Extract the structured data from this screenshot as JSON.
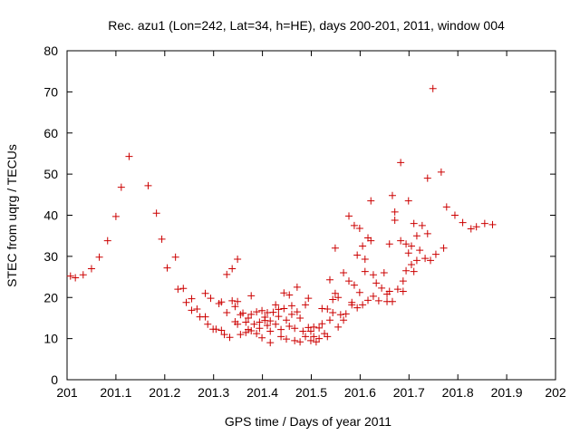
{
  "chart_data": {
    "type": "scatter",
    "title": "Rec. azu1 (Lon=242, Lat=34, h=HE), days 200-201, 2011, window 004",
    "xlabel": "GPS time / Days of year 2011",
    "ylabel": "STEC from uqrg / TECUs",
    "xlim": [
      201,
      202
    ],
    "ylim": [
      0,
      80
    ],
    "xticks": [
      "201",
      "201.1",
      "201.2",
      "201.3",
      "201.4",
      "201.5",
      "201.6",
      "201.7",
      "201.8",
      "201.9",
      "202"
    ],
    "yticks": [
      "0",
      "10",
      "20",
      "30",
      "40",
      "50",
      "60",
      "70",
      "80"
    ],
    "grid": false,
    "marker": "+",
    "color": "#cc0000",
    "points": [
      [
        201.007,
        25.2
      ],
      [
        201.017,
        24.8
      ],
      [
        201.033,
        25.5
      ],
      [
        201.05,
        27.0
      ],
      [
        201.066,
        29.8
      ],
      [
        201.083,
        33.8
      ],
      [
        201.1,
        39.7
      ],
      [
        201.111,
        46.8
      ],
      [
        201.127,
        54.3
      ],
      [
        201.166,
        47.2
      ],
      [
        201.183,
        40.5
      ],
      [
        201.194,
        34.2
      ],
      [
        201.205,
        27.2
      ],
      [
        201.222,
        29.8
      ],
      [
        201.227,
        22.0
      ],
      [
        201.238,
        22.2
      ],
      [
        201.244,
        18.8
      ],
      [
        201.255,
        19.7
      ],
      [
        201.255,
        16.9
      ],
      [
        201.266,
        17.2
      ],
      [
        201.272,
        15.3
      ],
      [
        201.283,
        21.0
      ],
      [
        201.283,
        15.3
      ],
      [
        201.288,
        13.5
      ],
      [
        201.294,
        19.8
      ],
      [
        201.299,
        12.3
      ],
      [
        201.305,
        12.3
      ],
      [
        201.311,
        18.5
      ],
      [
        201.316,
        18.9
      ],
      [
        201.316,
        12.0
      ],
      [
        201.322,
        11.0
      ],
      [
        201.327,
        25.6
      ],
      [
        201.327,
        16.3
      ],
      [
        201.333,
        10.3
      ],
      [
        201.338,
        27.0
      ],
      [
        201.338,
        19.2
      ],
      [
        201.344,
        17.8
      ],
      [
        201.344,
        14.1
      ],
      [
        201.349,
        29.3
      ],
      [
        201.349,
        19.0
      ],
      [
        201.349,
        13.5
      ],
      [
        201.355,
        11.0
      ],
      [
        201.355,
        15.8
      ],
      [
        201.36,
        16.2
      ],
      [
        201.366,
        14.0
      ],
      [
        201.366,
        11.5
      ],
      [
        201.371,
        12.2
      ],
      [
        201.371,
        15.0
      ],
      [
        201.377,
        11.9
      ],
      [
        201.377,
        20.4
      ],
      [
        201.377,
        15.9
      ],
      [
        201.383,
        13.5
      ],
      [
        201.388,
        16.5
      ],
      [
        201.388,
        11.2
      ],
      [
        201.394,
        14.0
      ],
      [
        201.394,
        12.5
      ],
      [
        201.399,
        16.8
      ],
      [
        201.399,
        10.2
      ],
      [
        201.405,
        14.4
      ],
      [
        201.405,
        15.2
      ],
      [
        201.41,
        16.3
      ],
      [
        201.41,
        13.2
      ],
      [
        201.416,
        9.0
      ],
      [
        201.416,
        11.8
      ],
      [
        201.416,
        14.3
      ],
      [
        201.422,
        16.4
      ],
      [
        201.427,
        18.2
      ],
      [
        201.427,
        13.5
      ],
      [
        201.433,
        15.4
      ],
      [
        201.433,
        17.1
      ],
      [
        201.438,
        10.5
      ],
      [
        201.438,
        12.2
      ],
      [
        201.444,
        21.1
      ],
      [
        201.444,
        17.3
      ],
      [
        201.449,
        14.5
      ],
      [
        201.449,
        9.9
      ],
      [
        201.455,
        20.6
      ],
      [
        201.455,
        13.0
      ],
      [
        201.46,
        18.0
      ],
      [
        201.46,
        15.9
      ],
      [
        201.466,
        9.5
      ],
      [
        201.466,
        12.5
      ],
      [
        201.471,
        22.5
      ],
      [
        201.471,
        16.5
      ],
      [
        201.477,
        15.0
      ],
      [
        201.477,
        9.2
      ],
      [
        201.483,
        11.8
      ],
      [
        201.488,
        18.2
      ],
      [
        201.488,
        10.5
      ],
      [
        201.494,
        19.8
      ],
      [
        201.494,
        12.7
      ],
      [
        201.499,
        9.5
      ],
      [
        201.499,
        11.8
      ],
      [
        201.505,
        12.8
      ],
      [
        201.505,
        10.5
      ],
      [
        201.51,
        9.2
      ],
      [
        201.516,
        12.6
      ],
      [
        201.516,
        10.0
      ],
      [
        201.522,
        13.6
      ],
      [
        201.522,
        17.3
      ],
      [
        201.527,
        11.2
      ],
      [
        201.533,
        17.2
      ],
      [
        201.533,
        10.5
      ],
      [
        201.538,
        24.3
      ],
      [
        201.538,
        14.5
      ],
      [
        201.544,
        19.5
      ],
      [
        201.544,
        16.3
      ],
      [
        201.549,
        32.0
      ],
      [
        201.549,
        21.0
      ],
      [
        201.555,
        12.8
      ],
      [
        201.555,
        20.0
      ],
      [
        201.56,
        15.8
      ],
      [
        201.566,
        26.0
      ],
      [
        201.566,
        14.5
      ],
      [
        201.571,
        16.0
      ],
      [
        201.577,
        39.8
      ],
      [
        201.577,
        24.0
      ],
      [
        201.583,
        18.2
      ],
      [
        201.583,
        18.8
      ],
      [
        201.588,
        37.5
      ],
      [
        201.588,
        23.0
      ],
      [
        201.594,
        30.3
      ],
      [
        201.594,
        17.5
      ],
      [
        201.599,
        36.8
      ],
      [
        201.599,
        21.2
      ],
      [
        201.605,
        32.5
      ],
      [
        201.605,
        18.2
      ],
      [
        201.61,
        29.3
      ],
      [
        201.61,
        26.3
      ],
      [
        201.616,
        34.5
      ],
      [
        201.616,
        19.3
      ],
      [
        201.622,
        43.5
      ],
      [
        201.622,
        33.8
      ],
      [
        201.627,
        20.3
      ],
      [
        201.627,
        25.5
      ],
      [
        201.633,
        23.5
      ],
      [
        201.638,
        19.2
      ],
      [
        201.644,
        22.3
      ],
      [
        201.649,
        26.0
      ],
      [
        201.655,
        20.8
      ],
      [
        201.655,
        19.0
      ],
      [
        201.66,
        33.0
      ],
      [
        201.66,
        21.5
      ],
      [
        201.666,
        44.8
      ],
      [
        201.666,
        19.0
      ],
      [
        201.671,
        40.8
      ],
      [
        201.671,
        38.8
      ],
      [
        201.677,
        22.0
      ],
      [
        201.683,
        52.8
      ],
      [
        201.683,
        33.8
      ],
      [
        201.688,
        24.0
      ],
      [
        201.688,
        21.5
      ],
      [
        201.694,
        33.0
      ],
      [
        201.694,
        26.5
      ],
      [
        201.699,
        43.5
      ],
      [
        201.699,
        30.8
      ],
      [
        201.705,
        32.5
      ],
      [
        201.705,
        28.0
      ],
      [
        201.71,
        38.0
      ],
      [
        201.71,
        26.3
      ],
      [
        201.716,
        35.0
      ],
      [
        201.716,
        29.0
      ],
      [
        201.722,
        31.5
      ],
      [
        201.727,
        37.5
      ],
      [
        201.733,
        29.5
      ],
      [
        201.738,
        49.0
      ],
      [
        201.738,
        35.5
      ],
      [
        201.744,
        29.0
      ],
      [
        201.749,
        70.8
      ],
      [
        201.755,
        30.5
      ],
      [
        201.766,
        50.5
      ],
      [
        201.771,
        32.0
      ],
      [
        201.777,
        42.0
      ],
      [
        201.794,
        40.0
      ],
      [
        201.81,
        38.2
      ],
      [
        201.827,
        36.7
      ],
      [
        201.838,
        37.2
      ],
      [
        201.855,
        38.0
      ],
      [
        201.871,
        37.7
      ]
    ]
  }
}
